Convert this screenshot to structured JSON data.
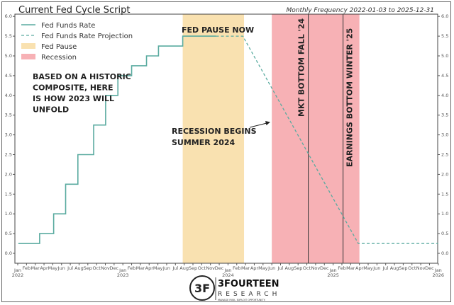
{
  "chart_data": {
    "type": "line",
    "title": "Current Fed Cycle Script",
    "subtitle": "Monthly Frequency 2022-01-03 to 2025-12-31",
    "xlabel": "",
    "ylabel": "",
    "xlim": [
      "2022-01-01",
      "2026-01-01"
    ],
    "ylim": [
      -0.25,
      6.0
    ],
    "yticks": [
      0.0,
      0.5,
      1.0,
      1.5,
      2.0,
      2.5,
      3.0,
      3.5,
      4.0,
      4.5,
      5.0,
      5.5,
      6.0
    ],
    "grid": false,
    "legend_position": "top-left",
    "series": [
      {
        "name": "Fed Funds Rate",
        "style": "solid-step",
        "color": "#5aaba0",
        "points": [
          [
            "2022-01-03",
            0.25
          ],
          [
            "2022-03-16",
            0.5
          ],
          [
            "2022-05-04",
            1.0
          ],
          [
            "2022-06-15",
            1.75
          ],
          [
            "2022-07-27",
            2.5
          ],
          [
            "2022-09-21",
            3.25
          ],
          [
            "2022-11-02",
            4.0
          ],
          [
            "2022-12-14",
            4.5
          ],
          [
            "2023-02-01",
            4.75
          ],
          [
            "2023-03-22",
            5.0
          ],
          [
            "2023-05-03",
            5.25
          ],
          [
            "2023-07-26",
            5.5
          ],
          [
            "2023-11-20",
            5.5
          ]
        ]
      },
      {
        "name": "Fed Funds Rate Projection",
        "style": "dashed",
        "color": "#5aaba0",
        "points": [
          [
            "2023-11-20",
            5.5
          ],
          [
            "2024-02-22",
            5.5
          ],
          [
            "2025-03-27",
            0.25
          ],
          [
            "2025-12-31",
            0.25
          ]
        ]
      }
    ],
    "spans": [
      {
        "name": "Fed Pause",
        "start": "2023-07-26",
        "end": "2024-02-26",
        "color": "#f9e1b0"
      },
      {
        "name": "Recession",
        "start": "2024-06-01",
        "end": "2025-04-01",
        "color": "#f7b1b5"
      }
    ],
    "vlines": [
      {
        "date": "2024-10-06",
        "label": "MKT BOTTOM FALL '24"
      },
      {
        "date": "2025-02-05",
        "label": "EARNINGS BOTTOM WINTER '25"
      }
    ],
    "annotations": {
      "pause": "FED PAUSE NOW",
      "composite": [
        "BASED ON A HISTORIC",
        "COMPOSITE, HERE",
        "IS HOW 2023 WILL",
        "UNFOLD"
      ],
      "recession": [
        "RECESSION BEGINS",
        "SUMMER 2024"
      ]
    },
    "month_labels": [
      "Jan",
      "Feb",
      "Mar",
      "Apr",
      "May",
      "Jun",
      "Jul",
      "Aug",
      "Sep",
      "Oct",
      "Nov",
      "Dec"
    ],
    "year_labels": [
      "2022",
      "2023",
      "2024",
      "2025",
      "2026"
    ]
  },
  "logo": {
    "name": "3FOURTEEN",
    "sub": "RESEARCH",
    "tagline": "MANAGE RISK. EXPLOIT OPPORTUNITY."
  }
}
